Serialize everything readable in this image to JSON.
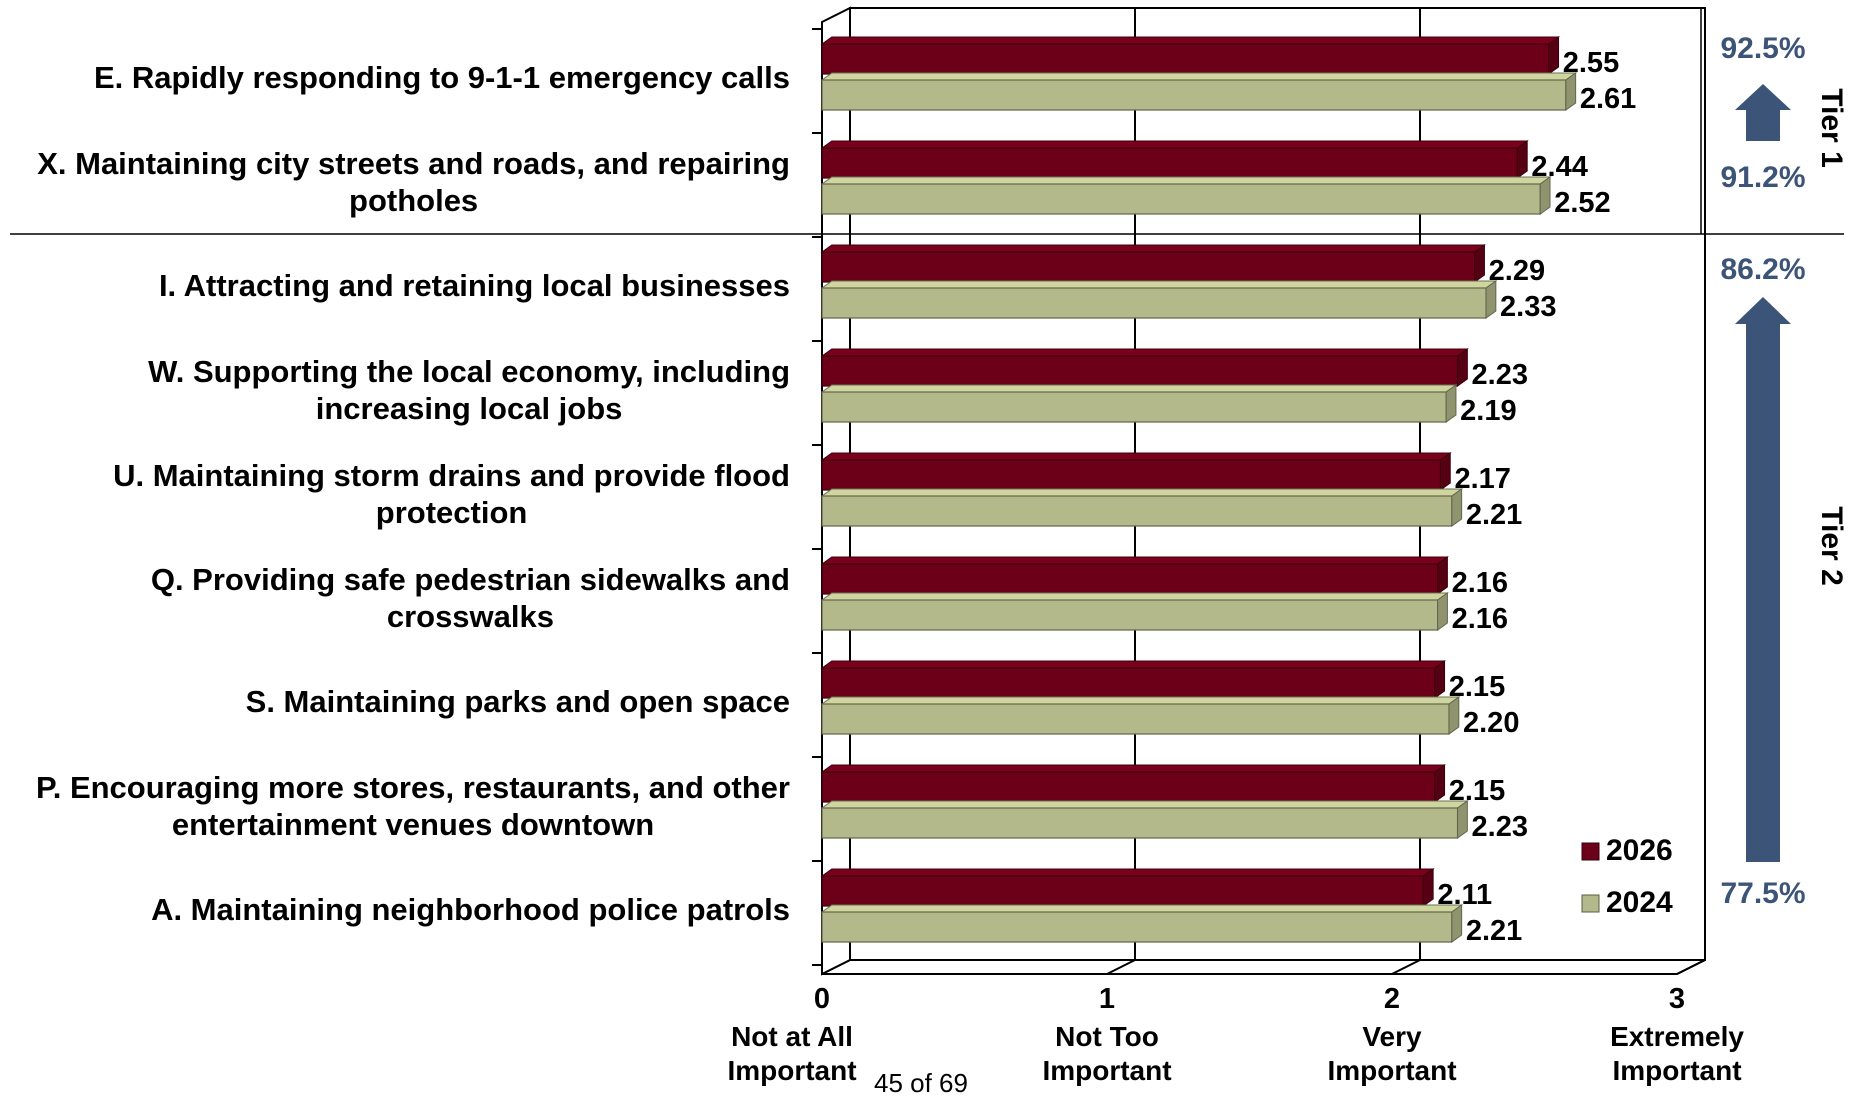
{
  "chart_data": {
    "type": "bar",
    "orientation": "horizontal",
    "categories": [
      [
        "E. Rapidly responding to 9-1-1 emergency calls"
      ],
      [
        "X. Maintaining city streets and roads, and repairing",
        "potholes"
      ],
      [
        "I. Attracting and retaining local businesses"
      ],
      [
        "W. Supporting the local economy, including",
        "increasing local jobs"
      ],
      [
        "U. Maintaining storm drains and provide flood",
        "protection"
      ],
      [
        "Q. Providing safe pedestrian sidewalks and",
        "crosswalks"
      ],
      [
        "S. Maintaining parks and open space"
      ],
      [
        "P. Encouraging more stores, restaurants, and other",
        "entertainment venues downtown"
      ],
      [
        "A. Maintaining neighborhood police patrols"
      ]
    ],
    "series": [
      {
        "name": "2026",
        "color": "#6b0018",
        "values": [
          2.55,
          2.44,
          2.29,
          2.23,
          2.17,
          2.16,
          2.15,
          2.15,
          2.11
        ],
        "labels": [
          "2.55",
          "2.44",
          "2.29",
          "2.23",
          "2.17",
          "2.16",
          "2.15",
          "2.15",
          "2.11"
        ]
      },
      {
        "name": "2024",
        "color": "#b3b98a",
        "values": [
          2.61,
          2.52,
          2.33,
          2.19,
          2.21,
          2.16,
          2.2,
          2.23,
          2.21
        ],
        "labels": [
          "2.61",
          "2.52",
          "2.33",
          "2.19",
          "2.21",
          "2.16",
          "2.20",
          "2.23",
          "2.21"
        ]
      }
    ],
    "xlim": [
      0,
      3
    ],
    "xticks": [
      {
        "value": 0,
        "label": "0",
        "text": [
          "Not at All",
          "Important"
        ]
      },
      {
        "value": 1,
        "label": "1",
        "text": [
          "Not Too",
          "Important"
        ]
      },
      {
        "value": 2,
        "label": "2",
        "text": [
          "Very",
          "Important"
        ]
      },
      {
        "value": 3,
        "label": "3",
        "text": [
          "Extremely",
          "Important"
        ]
      }
    ],
    "grid": true,
    "legend": "bottom-right",
    "tiers": [
      {
        "label": "Tier 1",
        "top_pct": "92.5%",
        "bottom_pct": "91.2%"
      },
      {
        "label": "Tier 2",
        "top_pct": "86.2%",
        "bottom_pct": "77.5%"
      }
    ],
    "arrow_color": "#3c5477"
  },
  "footer": {
    "page_number": "45 of 69"
  }
}
